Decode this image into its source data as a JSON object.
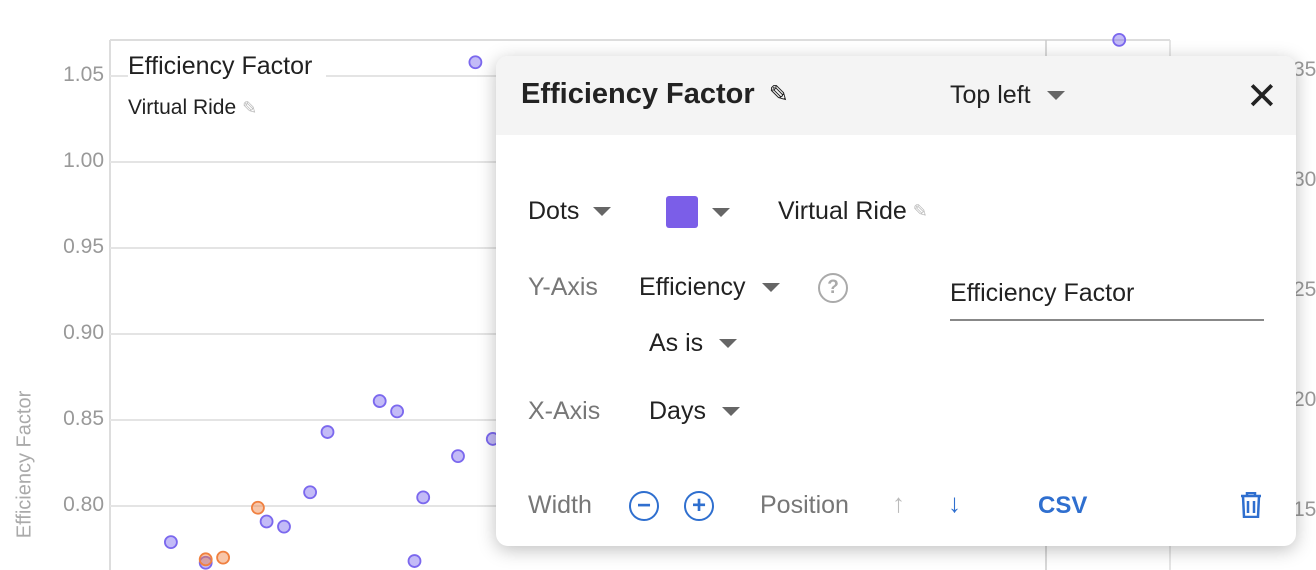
{
  "chart_data": {
    "type": "scatter",
    "title": "Efficiency Factor",
    "ylabel": "Efficiency Factor",
    "xlabel": "",
    "y_ticks": [
      "1.05",
      "1.00",
      "0.95",
      "0.90",
      "0.85",
      "0.80"
    ],
    "right_ticks": [
      "35",
      "30",
      "25",
      "20",
      "15"
    ],
    "ylim": [
      0.76,
      1.07
    ],
    "grid": true,
    "legend": {
      "position": "top-left",
      "series_label": "Virtual Ride"
    },
    "series": [
      {
        "name": "Virtual Ride",
        "color": "#7b68ee",
        "points": [
          [
            7,
            0.779
          ],
          [
            11,
            0.767
          ],
          [
            18,
            0.791
          ],
          [
            20,
            0.788
          ],
          [
            23,
            0.808
          ],
          [
            25,
            0.843
          ],
          [
            31,
            0.861
          ],
          [
            33,
            0.855
          ],
          [
            35,
            0.768
          ],
          [
            36,
            0.805
          ],
          [
            40,
            0.829
          ],
          [
            44,
            0.839
          ],
          [
            42,
            1.058
          ],
          [
            116,
            1.071
          ]
        ]
      },
      {
        "color": "#f08040",
        "points": [
          [
            11,
            0.769
          ],
          [
            13,
            0.77
          ],
          [
            17,
            0.799
          ]
        ]
      }
    ]
  },
  "popup": {
    "title": "Efficiency Factor",
    "position_select": "Top left",
    "style_select": "Dots",
    "series_color": "#7b5ee8",
    "series_name": "Virtual Ride",
    "y_axis_label": "Y-Axis",
    "y_axis_value": "Efficiency",
    "axis_title_value": "Efficiency Factor",
    "transform_value": "As is",
    "x_axis_label": "X-Axis",
    "x_axis_value": "Days",
    "width_label": "Width",
    "position_label": "Position",
    "csv_label": "CSV"
  }
}
